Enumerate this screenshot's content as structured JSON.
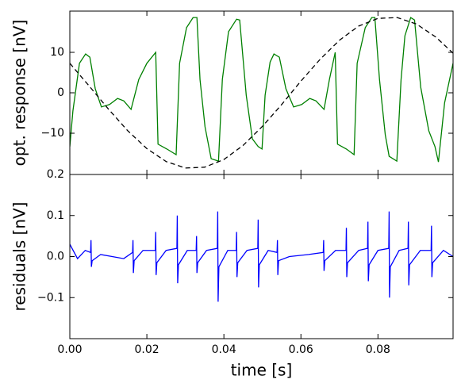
{
  "chart_data": [
    {
      "type": "line",
      "ylabel": "opt. response [nV]",
      "xlim": [
        0,
        0.0995
      ],
      "ylim": [
        -20.2,
        20.2
      ],
      "xticks": [
        0,
        0.02,
        0.04,
        0.06,
        0.08
      ],
      "yticks": [
        10,
        0,
        {
          "value": -10,
          "label": "−10"
        }
      ],
      "series": [
        {
          "color": "#008000",
          "dash": false,
          "x": [
            0,
            0.0008,
            0.0025,
            0.0041,
            0.0052,
            0.0066,
            0.0082,
            0.0103,
            0.0124,
            0.014,
            0.0159,
            0.0179,
            0.02,
            0.0223,
            0.0229,
            0.0252,
            0.0276,
            0.0285,
            0.0303,
            0.032,
            0.033,
            0.0338,
            0.0351,
            0.0367,
            0.0386,
            0.0396,
            0.0412,
            0.0433,
            0.0441,
            0.0458,
            0.0474,
            0.0489,
            0.0499,
            0.0507,
            0.052,
            0.053,
            0.0544,
            0.0561,
            0.0581,
            0.0602,
            0.0623,
            0.0639,
            0.066,
            0.0674,
            0.0689,
            0.0695,
            0.0718,
            0.0738,
            0.0746,
            0.0767,
            0.0784,
            0.0792,
            0.0804,
            0.0819,
            0.0829,
            0.0849,
            0.086,
            0.087,
            0.0885,
            0.0895,
            0.0911,
            0.0932,
            0.0948,
            0.0957,
            0.0973,
            0.0995
          ],
          "values": [
            -13.3,
            -4.5,
            7.3,
            9.6,
            8.8,
            1.0,
            -3.5,
            -2.9,
            -1.4,
            -2.0,
            -4.1,
            3.3,
            7.3,
            10.0,
            -12.7,
            -13.9,
            -15.3,
            7.3,
            16.1,
            18.6,
            18.6,
            3.3,
            -8.4,
            -16.3,
            -16.9,
            3.3,
            15.1,
            18.2,
            18.0,
            -0.6,
            -11.4,
            -13.3,
            -13.9,
            -0.6,
            7.6,
            9.6,
            8.8,
            1.0,
            -3.5,
            -2.9,
            -1.4,
            -2.0,
            -4.1,
            3.3,
            10.0,
            -12.7,
            -13.9,
            -15.3,
            7.3,
            16.1,
            18.6,
            18.6,
            3.3,
            -10.4,
            -15.7,
            -16.9,
            3.3,
            14.1,
            18.6,
            18.0,
            1.4,
            -9.4,
            -13.3,
            -17.1,
            -2.5,
            7.3
          ]
        },
        {
          "color": "#000000",
          "dash": true,
          "x": [
            0,
            0.005,
            0.01,
            0.015,
            0.02,
            0.025,
            0.03,
            0.035,
            0.04,
            0.045,
            0.05,
            0.055,
            0.06,
            0.065,
            0.07,
            0.075,
            0.08,
            0.085,
            0.09,
            0.095,
            0.0995
          ],
          "values": [
            7.3,
            1.7,
            -4.0,
            -9.35,
            -13.8,
            -17.0,
            -18.6,
            -18.4,
            -16.5,
            -13.0,
            -8.3,
            -2.9,
            2.9,
            8.3,
            13.0,
            16.5,
            18.4,
            18.6,
            17.0,
            13.8,
            9.8
          ]
        }
      ]
    },
    {
      "type": "line",
      "ylabel": "residuals [nV]",
      "xlabel": "time [s]",
      "xlim": [
        0,
        0.0995
      ],
      "ylim": [
        -0.2,
        0.2
      ],
      "xticks": [
        {
          "value": 0,
          "label": "0.00"
        },
        {
          "value": 0.02,
          "label": "0.02"
        },
        {
          "value": 0.04,
          "label": "0.04"
        },
        {
          "value": 0.06,
          "label": "0.06"
        },
        {
          "value": 0.08,
          "label": "0.08"
        }
      ],
      "yticks": [
        0.2,
        0.1,
        {
          "value": 0,
          "label": "0.0"
        },
        {
          "value": -0.1,
          "label": "−0.1"
        }
      ],
      "series": [
        {
          "color": "#0000ff",
          "dash": false,
          "x": [
            0,
            0.002,
            0.004,
            0.0054,
            0.0055,
            0.0056,
            0.0058,
            0.008,
            0.011,
            0.014,
            0.0163,
            0.0164,
            0.0165,
            0.0167,
            0.019,
            0.0222,
            0.0223,
            0.0224,
            0.0226,
            0.025,
            0.0278,
            0.0279,
            0.028,
            0.0282,
            0.0305,
            0.0328,
            0.0329,
            0.033,
            0.0332,
            0.0355,
            0.0383,
            0.0384,
            0.0385,
            0.0387,
            0.041,
            0.0432,
            0.0433,
            0.0434,
            0.0436,
            0.046,
            0.0488,
            0.0489,
            0.049,
            0.0492,
            0.0515,
            0.0538,
            0.0539,
            0.054,
            0.0542,
            0.057,
            0.062,
            0.0658,
            0.0659,
            0.066,
            0.0662,
            0.069,
            0.0717,
            0.0718,
            0.0719,
            0.0721,
            0.075,
            0.0773,
            0.0774,
            0.0775,
            0.0777,
            0.08,
            0.0828,
            0.0829,
            0.083,
            0.0832,
            0.0855,
            0.0878,
            0.0879,
            0.088,
            0.0882,
            0.091,
            0.0938,
            0.0939,
            0.094,
            0.0942,
            0.097,
            0.0995
          ],
          "values": [
            0.03,
            -0.005,
            0.015,
            0.01,
            0.04,
            -0.025,
            -0.01,
            0.005,
            0.0,
            -0.005,
            0.01,
            0.04,
            -0.04,
            -0.01,
            0.015,
            0.015,
            0.06,
            -0.045,
            -0.015,
            0.015,
            0.02,
            0.1,
            -0.065,
            -0.02,
            0.015,
            0.015,
            0.05,
            -0.04,
            -0.015,
            0.015,
            0.02,
            0.11,
            -0.11,
            -0.025,
            0.015,
            0.015,
            0.06,
            -0.05,
            -0.015,
            0.015,
            0.02,
            0.09,
            -0.075,
            -0.02,
            0.015,
            0.01,
            0.04,
            -0.045,
            -0.01,
            0.0,
            0.005,
            0.01,
            0.04,
            -0.035,
            -0.01,
            0.015,
            0.015,
            0.07,
            -0.05,
            -0.015,
            0.015,
            0.02,
            0.085,
            -0.06,
            -0.02,
            0.015,
            0.02,
            0.11,
            -0.1,
            -0.025,
            0.015,
            0.02,
            0.085,
            -0.07,
            -0.02,
            0.015,
            0.015,
            0.075,
            -0.05,
            -0.015,
            0.015,
            0.0
          ]
        }
      ]
    }
  ]
}
